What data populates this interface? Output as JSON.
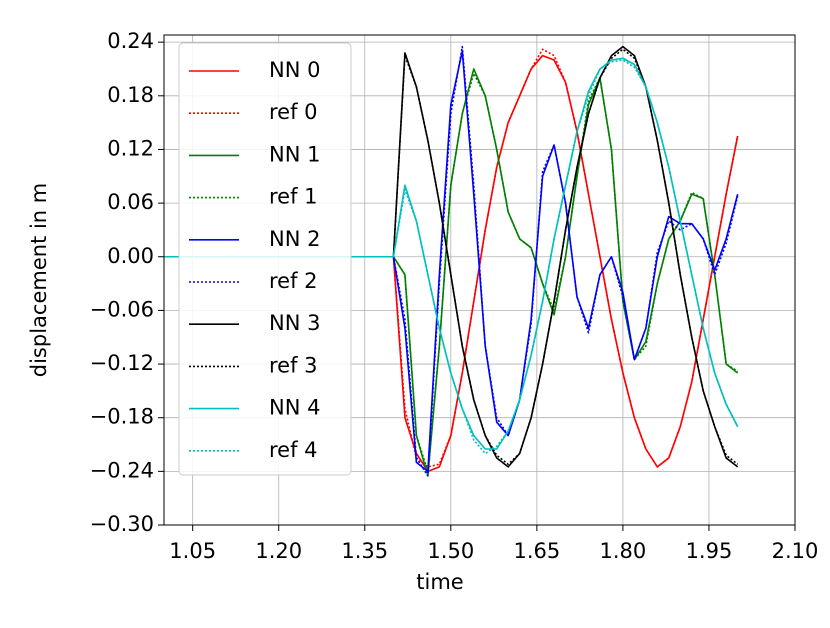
{
  "chart_data": {
    "type": "line",
    "xlabel": "time",
    "ylabel": "displacement in m",
    "xlim": [
      1.0,
      2.1
    ],
    "ylim": [
      -0.3,
      0.248
    ],
    "xticks": [
      1.05,
      {
        "value": 1.2,
        "label": "1.20"
      },
      1.35,
      {
        "value": 1.5,
        "label": "1.50"
      },
      1.65,
      {
        "value": 1.8,
        "label": "1.80"
      },
      1.95,
      {
        "value": 2.1,
        "label": "2.10"
      }
    ],
    "yticks": [
      {
        "value": -0.3,
        "label": "−0.30"
      },
      {
        "value": -0.24,
        "label": "−0.24"
      },
      {
        "value": -0.18,
        "label": "−0.18"
      },
      {
        "value": -0.12,
        "label": "−0.12"
      },
      {
        "value": -0.06,
        "label": "−0.06"
      },
      {
        "value": 0,
        "label": "0.00"
      },
      0.06,
      0.12,
      0.18,
      0.24
    ],
    "grid": true,
    "legend": "upper left",
    "x": [
      1.0,
      1.02,
      1.04,
      1.06,
      1.08,
      1.1,
      1.12,
      1.14,
      1.16,
      1.18,
      1.2,
      1.22,
      1.24,
      1.26,
      1.28,
      1.3,
      1.32,
      1.34,
      1.36,
      1.38,
      1.4,
      1.42,
      1.44,
      1.46,
      1.48,
      1.5,
      1.52,
      1.54,
      1.56,
      1.58,
      1.6,
      1.62,
      1.64,
      1.66,
      1.68,
      1.7,
      1.72,
      1.74,
      1.76,
      1.78,
      1.8,
      1.82,
      1.84,
      1.86,
      1.88,
      1.9,
      1.92,
      1.94,
      1.96,
      1.98,
      2.0
    ],
    "series": [
      {
        "name": "NN 0",
        "color": "#ff0000",
        "linestyle": "solid",
        "values": [
          0,
          0,
          0,
          0,
          0,
          0,
          0,
          0,
          0,
          0,
          0,
          0,
          0,
          0,
          0,
          0,
          0,
          0,
          0,
          0,
          0,
          -0.18,
          -0.22,
          -0.24,
          -0.235,
          -0.2,
          -0.13,
          -0.05,
          0.03,
          0.1,
          0.15,
          0.18,
          0.21,
          0.225,
          0.22,
          0.195,
          0.14,
          0.07,
          0.0,
          -0.07,
          -0.13,
          -0.18,
          -0.215,
          -0.235,
          -0.225,
          -0.19,
          -0.14,
          -0.07,
          0.0,
          0.07,
          0.135
        ]
      },
      {
        "name": "ref 0",
        "color": "#ff0000",
        "linestyle": "dotted",
        "values": [
          0,
          0,
          0,
          0,
          0,
          0,
          0,
          0,
          0,
          0,
          0,
          0,
          0,
          0,
          0,
          0,
          0,
          0,
          0,
          0,
          0,
          -0.17,
          -0.225,
          -0.235,
          -0.232,
          -0.2,
          -0.13,
          -0.05,
          0.03,
          0.1,
          0.15,
          0.18,
          0.21,
          0.232,
          0.225,
          0.195,
          0.14,
          0.07,
          0.0,
          -0.07,
          -0.13,
          -0.18,
          -0.215,
          -0.235,
          -0.225,
          -0.19,
          -0.14,
          -0.07,
          0.0,
          0.07,
          0.135
        ]
      },
      {
        "name": "NN 1",
        "color": "#008000",
        "linestyle": "solid",
        "values": [
          0,
          0,
          0,
          0,
          0,
          0,
          0,
          0,
          0,
          0,
          0,
          0,
          0,
          0,
          0,
          0,
          0,
          0,
          0,
          0,
          0,
          -0.02,
          -0.2,
          -0.245,
          -0.1,
          0.08,
          0.16,
          0.21,
          0.18,
          0.12,
          0.05,
          0.02,
          0.01,
          -0.03,
          -0.065,
          0.0,
          0.09,
          0.17,
          0.2,
          0.12,
          -0.05,
          -0.115,
          -0.095,
          -0.03,
          0.02,
          0.04,
          0.07,
          0.065,
          -0.02,
          -0.12,
          -0.13
        ]
      },
      {
        "name": "ref 1",
        "color": "#008000",
        "linestyle": "dotted",
        "values": [
          0,
          0,
          0,
          0,
          0,
          0,
          0,
          0,
          0,
          0,
          0,
          0,
          0,
          0,
          0,
          0,
          0,
          0,
          0,
          0,
          0,
          -0.02,
          -0.2,
          -0.24,
          -0.1,
          0.08,
          0.16,
          0.205,
          0.18,
          0.12,
          0.05,
          0.02,
          0.01,
          -0.03,
          -0.06,
          0.0,
          0.09,
          0.175,
          0.2,
          0.12,
          -0.05,
          -0.115,
          -0.1,
          -0.03,
          0.02,
          0.04,
          0.072,
          0.065,
          -0.02,
          -0.12,
          -0.128
        ]
      },
      {
        "name": "NN 2",
        "color": "#0000ff",
        "linestyle": "solid",
        "values": [
          0,
          0,
          0,
          0,
          0,
          0,
          0,
          0,
          0,
          0,
          0,
          0,
          0,
          0,
          0,
          0,
          0,
          0,
          0,
          0,
          0,
          -0.08,
          -0.23,
          -0.24,
          -0.02,
          0.17,
          0.23,
          0.07,
          -0.1,
          -0.185,
          -0.2,
          -0.16,
          -0.07,
          0.09,
          0.125,
          0.06,
          -0.045,
          -0.08,
          -0.02,
          0.0,
          -0.04,
          -0.115,
          -0.08,
          0.0,
          0.045,
          0.037,
          0.037,
          0.02,
          -0.015,
          0.02,
          0.07
        ]
      },
      {
        "name": "ref 2",
        "color": "#0000ff",
        "linestyle": "dotted",
        "values": [
          0,
          0,
          0,
          0,
          0,
          0,
          0,
          0,
          0,
          0,
          0,
          0,
          0,
          0,
          0,
          0,
          0,
          0,
          0,
          0,
          0,
          -0.07,
          -0.225,
          -0.245,
          -0.03,
          0.16,
          0.235,
          0.08,
          -0.1,
          -0.18,
          -0.2,
          -0.16,
          -0.075,
          0.095,
          0.125,
          0.06,
          -0.045,
          -0.085,
          -0.02,
          0.0,
          -0.045,
          -0.115,
          -0.08,
          0.005,
          0.04,
          0.03,
          0.037,
          0.02,
          -0.02,
          0.015,
          0.068
        ]
      },
      {
        "name": "NN 3",
        "color": "#000000",
        "linestyle": "solid",
        "values": [
          0,
          0,
          0,
          0,
          0,
          0,
          0,
          0,
          0,
          0,
          0,
          0,
          0,
          0,
          0,
          0,
          0,
          0,
          0,
          0,
          0,
          0.228,
          0.19,
          0.13,
          0.06,
          -0.02,
          -0.1,
          -0.16,
          -0.2,
          -0.225,
          -0.235,
          -0.22,
          -0.18,
          -0.12,
          -0.05,
          0.03,
          0.1,
          0.16,
          0.2,
          0.225,
          0.235,
          0.225,
          0.19,
          0.13,
          0.06,
          -0.02,
          -0.09,
          -0.15,
          -0.19,
          -0.225,
          -0.235
        ]
      },
      {
        "name": "ref 3",
        "color": "#000000",
        "linestyle": "dotted",
        "values": [
          0,
          0,
          0,
          0,
          0,
          0,
          0,
          0,
          0,
          0,
          0,
          0,
          0,
          0,
          0,
          0,
          0,
          0,
          0,
          0,
          0,
          0.225,
          0.19,
          0.13,
          0.06,
          -0.02,
          -0.1,
          -0.16,
          -0.2,
          -0.222,
          -0.232,
          -0.22,
          -0.18,
          -0.12,
          -0.05,
          0.03,
          0.1,
          0.16,
          0.2,
          0.222,
          0.232,
          0.222,
          0.19,
          0.13,
          0.06,
          -0.02,
          -0.09,
          -0.15,
          -0.19,
          -0.222,
          -0.232
        ]
      },
      {
        "name": "NN 4",
        "color": "#00bfbf",
        "linestyle": "solid",
        "values": [
          0,
          0,
          0,
          0,
          0,
          0,
          0,
          0,
          0,
          0,
          0,
          0,
          0,
          0,
          0,
          0,
          0,
          0,
          0,
          0,
          0,
          0.08,
          0.04,
          -0.02,
          -0.08,
          -0.13,
          -0.17,
          -0.2,
          -0.215,
          -0.215,
          -0.195,
          -0.16,
          -0.11,
          -0.05,
          0.02,
          0.08,
          0.14,
          0.185,
          0.21,
          0.22,
          0.222,
          0.215,
          0.19,
          0.15,
          0.1,
          0.04,
          -0.02,
          -0.08,
          -0.13,
          -0.165,
          -0.19
        ]
      },
      {
        "name": "ref 4",
        "color": "#00bfbf",
        "linestyle": "dotted",
        "values": [
          0,
          0,
          0,
          0,
          0,
          0,
          0,
          0,
          0,
          0,
          0,
          0,
          0,
          0,
          0,
          0,
          0,
          0,
          0,
          0,
          0,
          0.075,
          0.04,
          -0.02,
          -0.08,
          -0.13,
          -0.17,
          -0.205,
          -0.22,
          -0.212,
          -0.195,
          -0.16,
          -0.11,
          -0.05,
          0.02,
          0.08,
          0.14,
          0.18,
          0.21,
          0.218,
          0.22,
          0.212,
          0.19,
          0.15,
          0.1,
          0.04,
          -0.02,
          -0.08,
          -0.13,
          -0.165,
          -0.19
        ]
      }
    ]
  }
}
